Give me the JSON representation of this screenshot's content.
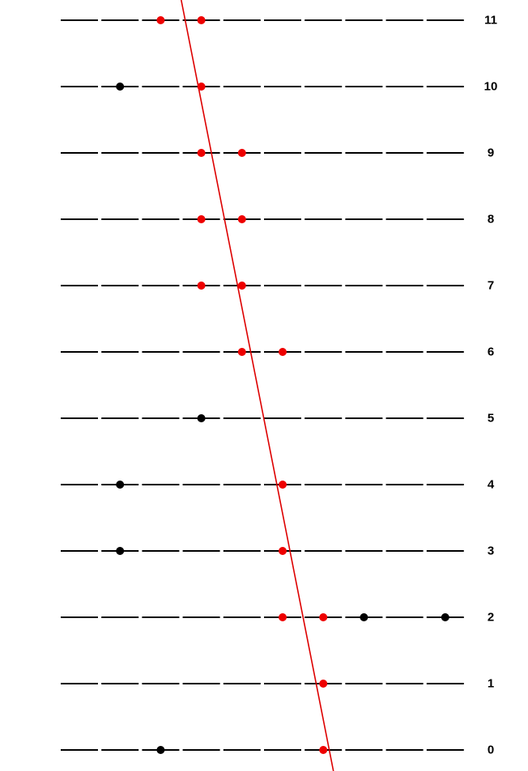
{
  "colors": {
    "background": "#ffffff",
    "dash": "#000000",
    "label": "#000000",
    "hit_point": "#ee0000",
    "noise_point": "#000000",
    "fit_line": "#dd0000"
  },
  "rows": [
    {
      "label": "0",
      "points": [
        {
          "col": 2,
          "type": "noise"
        },
        {
          "col": 6,
          "type": "hit"
        }
      ]
    },
    {
      "label": "1",
      "points": [
        {
          "col": 6,
          "type": "hit"
        }
      ]
    },
    {
      "label": "2",
      "points": [
        {
          "col": 5,
          "type": "hit"
        },
        {
          "col": 6,
          "type": "hit"
        },
        {
          "col": 7,
          "type": "noise"
        },
        {
          "col": 9,
          "type": "noise"
        }
      ]
    },
    {
      "label": "3",
      "points": [
        {
          "col": 1,
          "type": "noise"
        },
        {
          "col": 5,
          "type": "hit"
        }
      ]
    },
    {
      "label": "4",
      "points": [
        {
          "col": 1,
          "type": "noise"
        },
        {
          "col": 5,
          "type": "hit"
        }
      ]
    },
    {
      "label": "5",
      "points": [
        {
          "col": 3,
          "type": "noise"
        }
      ]
    },
    {
      "label": "6",
      "points": [
        {
          "col": 4,
          "type": "hit"
        },
        {
          "col": 5,
          "type": "hit"
        }
      ]
    },
    {
      "label": "7",
      "points": [
        {
          "col": 3,
          "type": "hit"
        },
        {
          "col": 4,
          "type": "hit"
        }
      ]
    },
    {
      "label": "8",
      "points": [
        {
          "col": 3,
          "type": "hit"
        },
        {
          "col": 4,
          "type": "hit"
        }
      ]
    },
    {
      "label": "9",
      "points": [
        {
          "col": 3,
          "type": "hit"
        },
        {
          "col": 4,
          "type": "hit"
        }
      ]
    },
    {
      "label": "10",
      "points": [
        {
          "col": 1,
          "type": "noise"
        },
        {
          "col": 3,
          "type": "hit"
        }
      ]
    },
    {
      "label": "11",
      "points": [
        {
          "col": 2,
          "type": "hit"
        },
        {
          "col": 3,
          "type": "hit"
        }
      ]
    }
  ],
  "segments_per_row": 10,
  "fit_line": {
    "type": "linear",
    "name": ""
  }
}
